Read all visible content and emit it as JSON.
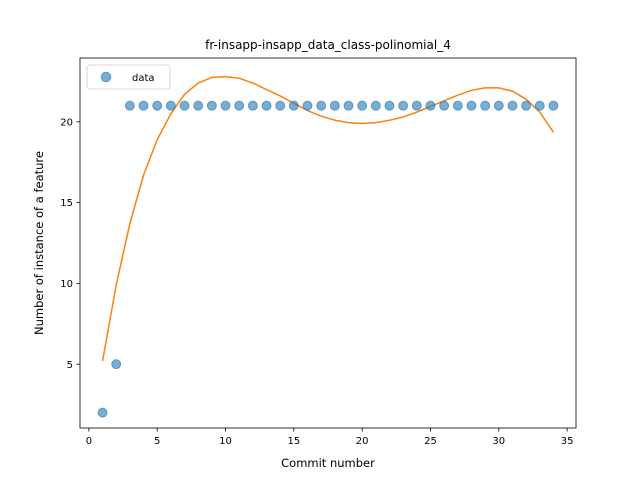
{
  "chart_data": {
    "type": "scatter",
    "title": "fr-insapp-insapp_data_class-polinomial_4",
    "xlabel": "Commit number",
    "ylabel": "Number of instance of a feature",
    "xlim": [
      -0.65,
      35.65
    ],
    "ylim": [
      1.05,
      23.95
    ],
    "xticks": [
      0,
      5,
      10,
      15,
      20,
      25,
      30,
      35
    ],
    "yticks": [
      5,
      10,
      15,
      20
    ],
    "grid": false,
    "legend": {
      "position": "top-left",
      "entries": [
        "data"
      ]
    },
    "series": [
      {
        "name": "data",
        "kind": "scatter",
        "color": "#1f77b4",
        "x": [
          1,
          2,
          3,
          4,
          5,
          6,
          7,
          8,
          9,
          10,
          11,
          12,
          13,
          14,
          15,
          16,
          17,
          18,
          19,
          20,
          21,
          22,
          23,
          24,
          25,
          26,
          27,
          28,
          29,
          30,
          31,
          32,
          33,
          34
        ],
        "y": [
          2,
          5,
          21,
          21,
          21,
          21,
          21,
          21,
          21,
          21,
          21,
          21,
          21,
          21,
          21,
          21,
          21,
          21,
          21,
          21,
          21,
          21,
          21,
          21,
          21,
          21,
          21,
          21,
          21,
          21,
          21,
          21,
          21,
          21
        ]
      },
      {
        "kind": "line",
        "color": "#ff7f0e",
        "x": [
          1,
          2,
          3,
          4,
          5,
          6,
          7,
          8,
          9,
          10,
          11,
          12,
          13,
          14,
          15,
          16,
          17,
          18,
          19,
          20,
          21,
          22,
          23,
          24,
          25,
          26,
          27,
          28,
          29,
          30,
          31,
          32,
          33,
          34
        ],
        "y": [
          5.2,
          9.9,
          13.7,
          16.7,
          18.9,
          20.5,
          21.7,
          22.4,
          22.75,
          22.8,
          22.7,
          22.4,
          22.0,
          21.6,
          21.15,
          20.7,
          20.35,
          20.1,
          19.95,
          19.9,
          19.95,
          20.1,
          20.3,
          20.6,
          20.95,
          21.3,
          21.65,
          21.95,
          22.1,
          22.1,
          21.9,
          21.4,
          20.6,
          19.35
        ]
      }
    ]
  }
}
